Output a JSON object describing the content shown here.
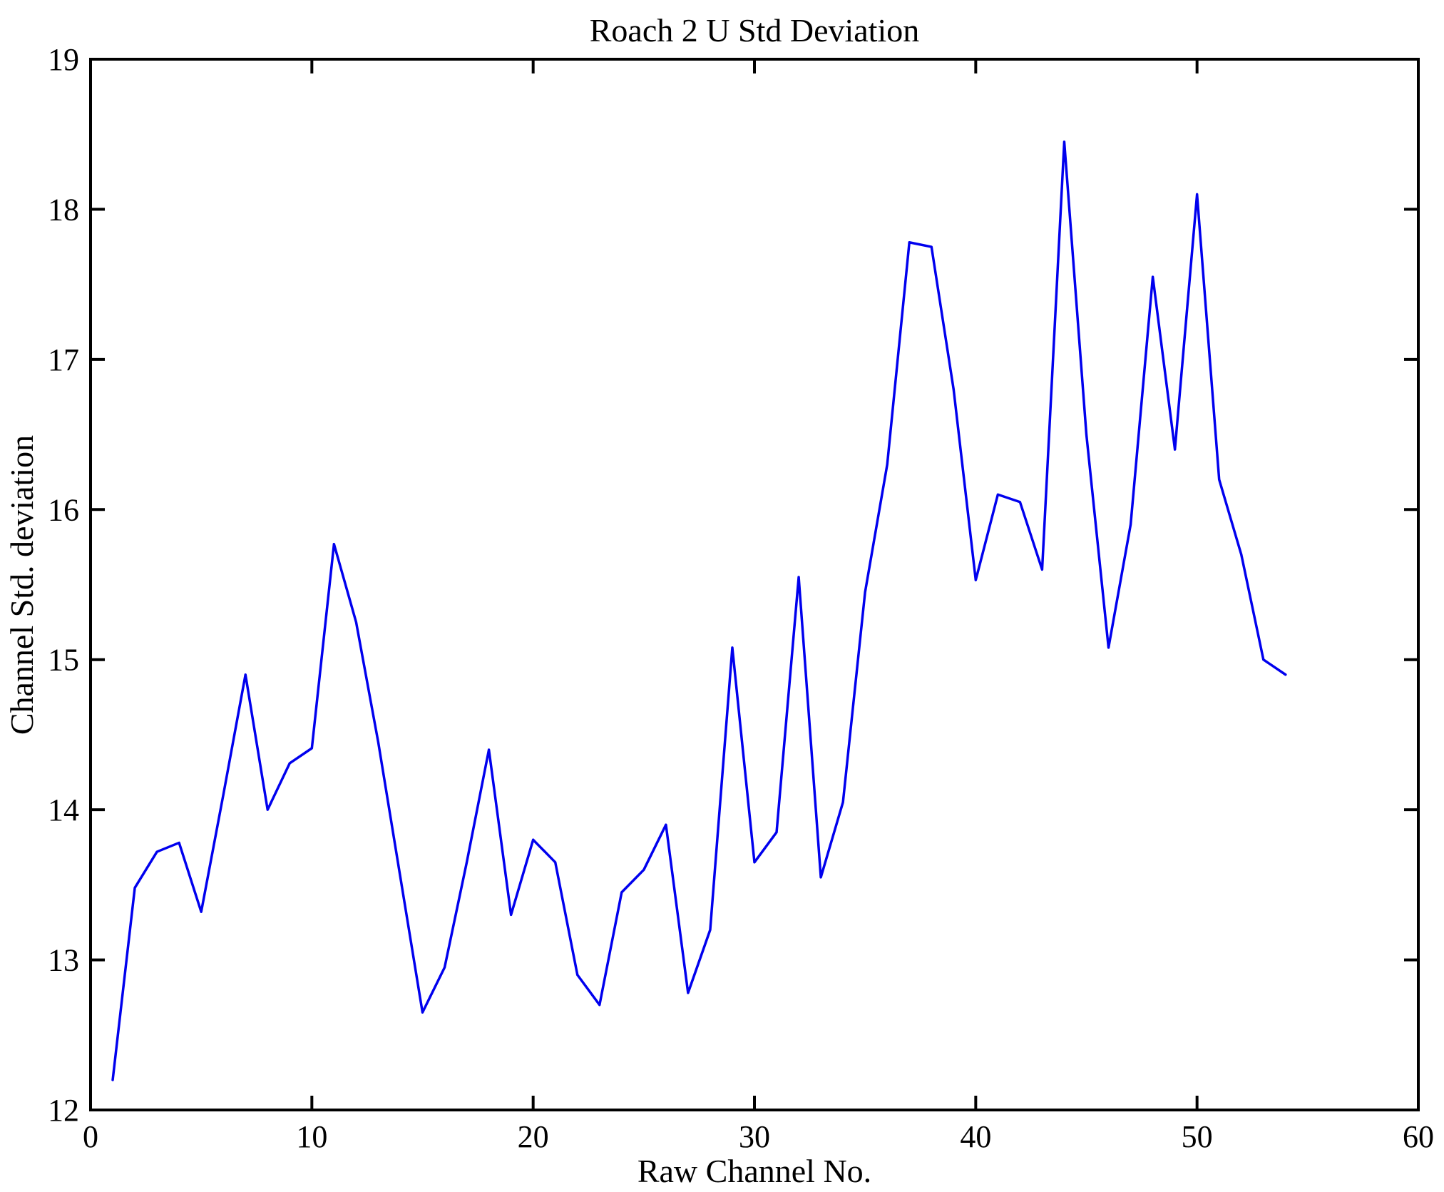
{
  "figure": {
    "title": "Roach 2 U Std Deviation",
    "xlabel": "Raw Channel No.",
    "ylabel": "Channel Std. deviation",
    "background_color": "#ffffff",
    "axis_color": "#000000",
    "line_color": "#0000ee"
  },
  "chart_data": {
    "type": "line",
    "title": "Roach 2 U Std Deviation",
    "xlabel": "Raw Channel No.",
    "ylabel": "Channel Std. deviation",
    "xlim": [
      0,
      60
    ],
    "ylim": [
      12,
      19
    ],
    "xticks": [
      0,
      10,
      20,
      30,
      40,
      50,
      60
    ],
    "yticks": [
      12,
      13,
      14,
      15,
      16,
      17,
      18,
      19
    ],
    "grid": false,
    "legend": "none",
    "series_name": "Channel Std. deviation",
    "x": [
      1,
      2,
      3,
      4,
      5,
      6,
      7,
      8,
      9,
      10,
      11,
      12,
      13,
      14,
      15,
      16,
      17,
      18,
      19,
      20,
      21,
      22,
      23,
      24,
      25,
      26,
      27,
      28,
      29,
      30,
      31,
      32,
      33,
      34,
      35,
      36,
      37,
      38,
      39,
      40,
      41,
      42,
      43,
      44,
      45,
      46,
      47,
      48,
      49,
      50,
      51,
      52,
      53,
      54
    ],
    "values": [
      12.2,
      13.48,
      13.72,
      13.78,
      13.32,
      14.1,
      14.9,
      14.0,
      14.31,
      14.41,
      15.77,
      15.25,
      14.45,
      13.55,
      12.65,
      12.95,
      13.65,
      14.4,
      13.3,
      13.8,
      13.65,
      12.9,
      12.7,
      13.45,
      13.6,
      13.9,
      12.78,
      13.2,
      15.08,
      13.65,
      13.85,
      15.55,
      13.55,
      14.05,
      15.45,
      16.3,
      17.78,
      17.75,
      16.8,
      15.53,
      16.1,
      16.05,
      15.6,
      18.45,
      16.5,
      15.08,
      15.9,
      17.55,
      16.4,
      18.1,
      16.2,
      15.7,
      15.0,
      14.9
    ]
  }
}
